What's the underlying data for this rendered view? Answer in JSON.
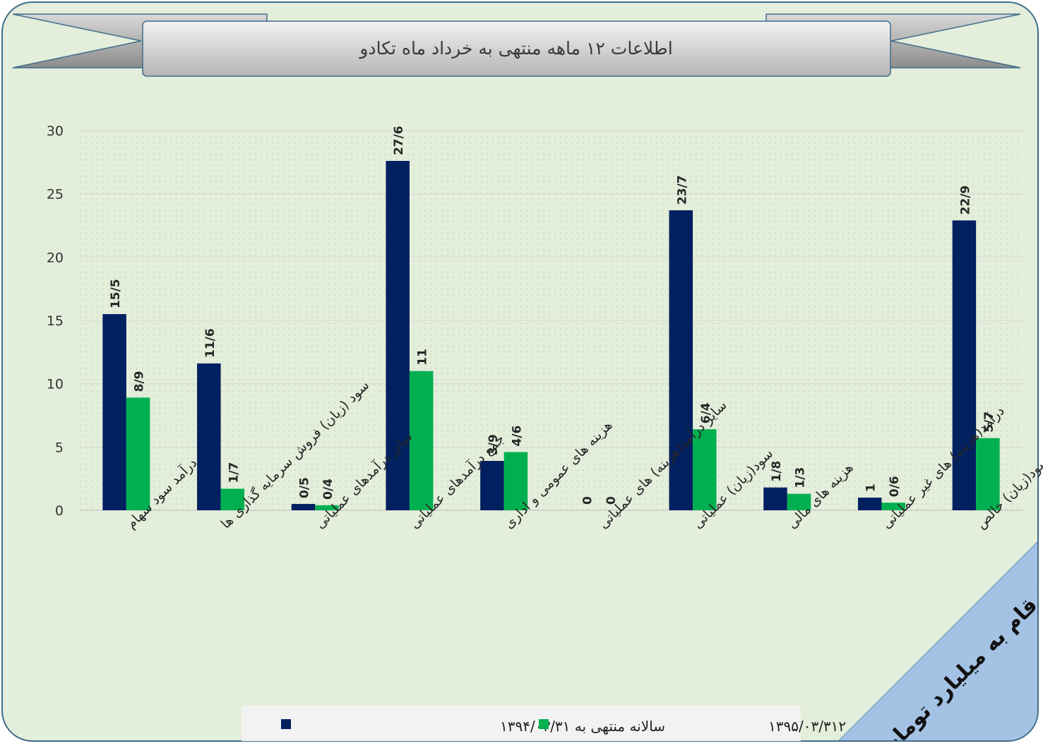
{
  "chart_data": {
    "type": "bar",
    "title": "اطلاعات ۱۲ ماهه منتهی به خرداد ماه تکادو",
    "xlabel": "",
    "ylabel": "",
    "ylim": [
      0,
      30
    ],
    "yticks": [
      0,
      5,
      10,
      15,
      20,
      25,
      30
    ],
    "grid": true,
    "legend_position": "bottom",
    "categories": [
      "درآمد سود سهام",
      "سود (زیان) فروش سرمایه گذاری ها",
      "سایر درآمدهای عملیاتی",
      "جمع درآمدهای عملیاتی",
      "هزینه های عمومی و اداری",
      "سایر درآمد(هزینه) های عملیاتی",
      "سود(زیان) عملیاتی",
      "هزینه های مالی",
      "درآمد(هزینه) های غیر عملیاتی",
      "سود(زیان) خالص"
    ],
    "series": [
      {
        "name": "سالانه منتهی به ۱۳۹۴/۰۳/۳۱",
        "color": "#002060",
        "values": [
          15.5,
          11.6,
          0.5,
          27.6,
          3.9,
          0,
          23.7,
          1.8,
          1,
          22.9
        ],
        "labels": [
          "15/5",
          "11/6",
          "0/5",
          "27/6",
          "3/9",
          "0",
          "23/7",
          "1/8",
          "1",
          "22/9"
        ]
      },
      {
        "name": "سالانه منتهی به ۱۳۹۵/۰۳/۳۱۲",
        "color": "#00b050",
        "values": [
          8.9,
          1.7,
          0.4,
          11,
          4.6,
          0,
          6.4,
          1.3,
          0.6,
          5.7
        ],
        "labels": [
          "8/9",
          "1/7",
          "0/4",
          "11",
          "4/6",
          "0",
          "6/4",
          "1/3",
          "0/6",
          "5/7"
        ]
      }
    ]
  },
  "note": "ارقام به میلیارد تومان"
}
